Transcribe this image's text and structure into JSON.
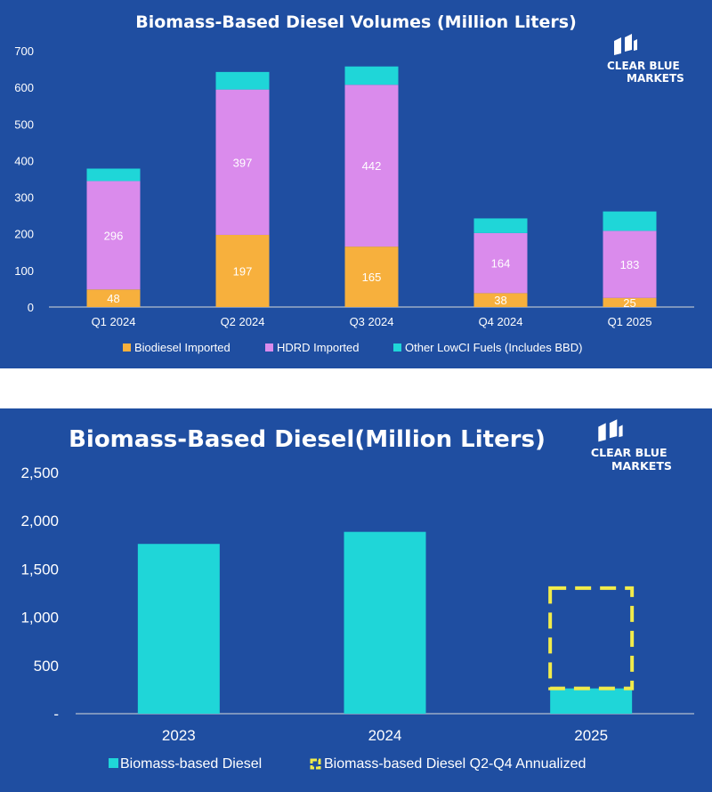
{
  "chart_data": [
    {
      "type": "bar",
      "stacked": true,
      "title": "Biomass-Based Diesel Volumes (Million Liters)",
      "categories": [
        "Q1 2024",
        "Q2 2024",
        "Q3 2024",
        "Q4 2024",
        "Q1 2025"
      ],
      "ylim": [
        0,
        700
      ],
      "yticks": [
        0,
        100,
        200,
        300,
        400,
        500,
        600,
        700
      ],
      "ytick_labels": [
        "0",
        "100",
        "200",
        "300",
        "400",
        "500",
        "600",
        "700"
      ],
      "series": [
        {
          "name": "Biodiesel Imported",
          "color": "#f7b03d",
          "values": [
            48,
            197,
            165,
            38,
            25
          ],
          "labels": [
            "48",
            "197",
            "165",
            "38",
            "25"
          ]
        },
        {
          "name": "HDRD Imported",
          "color": "#da8bec",
          "values": [
            296,
            397,
            442,
            164,
            183
          ],
          "labels": [
            "296",
            "397",
            "442",
            "164",
            "183"
          ]
        },
        {
          "name": "Other LowCI Fuels (Includes BBD)",
          "color": "#1fd6d8",
          "values": [
            34,
            48,
            50,
            40,
            53
          ]
        }
      ],
      "legend_position": "bottom"
    },
    {
      "type": "bar",
      "title": "Biomass-Based Diesel(Million Liters)",
      "categories": [
        "2023",
        "2024",
        "2025"
      ],
      "ylim": [
        0,
        2500
      ],
      "yticks": [
        0,
        500,
        1000,
        1500,
        2000,
        2500
      ],
      "ytick_labels": [
        "-",
        "500",
        "1,000",
        "1,500",
        "2,000",
        "2,500"
      ],
      "series": [
        {
          "name": "Biomass-based Diesel",
          "color": "#1fd6d8",
          "values": [
            1760,
            1885,
            262
          ]
        },
        {
          "name": "Biomass-based Diesel Q2-Q4 Annualized",
          "color": "#f2ec4a",
          "style": "dashed-outline",
          "values": [
            null,
            null,
            1040
          ]
        }
      ],
      "legend_position": "bottom"
    }
  ],
  "logo": {
    "line1": "CLEAR BLUE",
    "line2": "MARKETS",
    "mark_color": "#ffffff"
  }
}
